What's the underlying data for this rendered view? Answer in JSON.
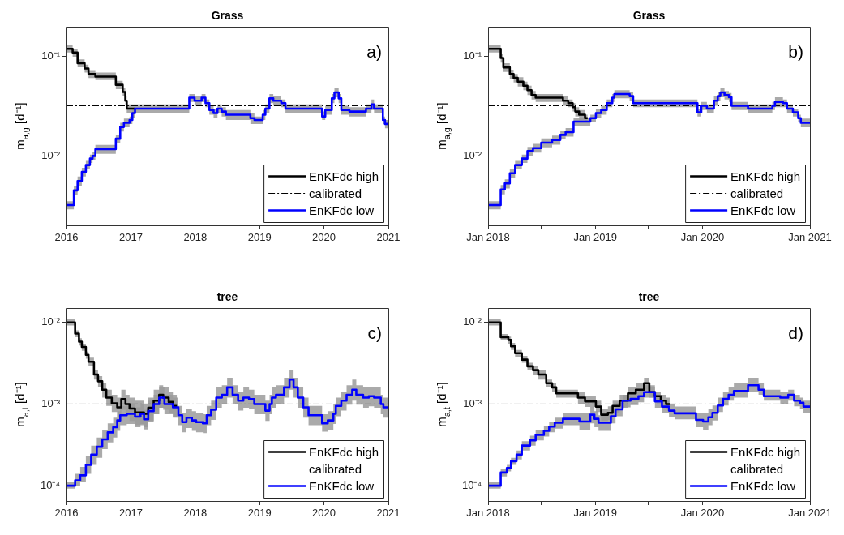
{
  "chart_data": [
    {
      "type": "step",
      "title": "Grass",
      "ylabel": "m$_{a,g}$ [d⁻¹]",
      "annotations": [
        "a)"
      ],
      "log": true,
      "legend": "bottom right",
      "xlim": [
        "2016",
        "2021"
      ],
      "xticks": [
        "2016",
        "2017",
        "2018",
        "2019",
        "2020",
        "2021"
      ],
      "ylim": [
        0.002,
        0.2
      ],
      "yticks": [
        {
          "value": 0.01,
          "label": "10⁻²"
        },
        {
          "value": 0.1,
          "label": "10⁻¹"
        }
      ],
      "series": [
        {
          "name": "EnKFdc high",
          "color": "#000000",
          "x": [
            "2016-01-01",
            "2016-02-05",
            "2016-03-04",
            "2016-04-13",
            "2016-05-05",
            "2016-06-13",
            "2016-10-07",
            "2016-11-15",
            "2016-11-30",
            "2016-12-08",
            "2017-01-24"
          ],
          "values": [
            0.12,
            0.11,
            0.086,
            0.076,
            0.067,
            0.063,
            0.052,
            0.044,
            0.036,
            0.03,
            0.03
          ],
          "lower": [
            0.11,
            0.1,
            0.078,
            0.069,
            0.061,
            0.058,
            0.047,
            0.04,
            0.033,
            0.027,
            0.027
          ],
          "upper": [
            0.13,
            0.12,
            0.094,
            0.083,
            0.073,
            0.069,
            0.057,
            0.048,
            0.04,
            0.033,
            0.033
          ]
        },
        {
          "name": "calibrated",
          "type": "line",
          "line_style": "dashed",
          "color": "#000000",
          "x": [
            "2016",
            "2021"
          ],
          "values": [
            0.032,
            0.032
          ]
        },
        {
          "name": "EnKFdc low",
          "color": "#0000ff",
          "x": [
            "2016-01-01",
            "2016-02-12",
            "2016-03-04",
            "2016-03-28",
            "2016-04-20",
            "2016-05-13",
            "2016-05-28",
            "2016-06-13",
            "2016-10-07",
            "2016-11-01",
            "2016-11-22",
            "2016-12-24",
            "2017-01-09",
            "2017-01-24",
            "2017-11-28",
            "2017-12-28",
            "2018-02-06",
            "2018-02-28",
            "2018-03-22",
            "2018-04-15",
            "2018-05-07",
            "2018-05-31",
            "2018-06-24",
            "2018-11-10",
            "2018-12-03",
            "2019-01-19",
            "2019-02-03",
            "2019-02-26",
            "2019-03-20",
            "2019-05-04",
            "2019-05-28",
            "2019-12-22",
            "2020-01-09",
            "2020-02-15",
            "2020-03-01",
            "2020-03-25",
            "2020-04-09",
            "2020-05-25",
            "2020-08-27",
            "2020-09-27",
            "2020-10-12",
            "2020-12-01",
            "2020-12-13",
            "2021-01-01"
          ],
          "values": [
            0.0032,
            0.0045,
            0.0056,
            0.0069,
            0.0081,
            0.0094,
            0.01,
            0.0117,
            0.0149,
            0.0196,
            0.0216,
            0.023,
            0.027,
            0.03,
            0.0386,
            0.036,
            0.0386,
            0.034,
            0.029,
            0.027,
            0.03,
            0.028,
            0.026,
            0.024,
            0.023,
            0.026,
            0.03,
            0.038,
            0.036,
            0.034,
            0.03,
            0.025,
            0.029,
            0.038,
            0.0436,
            0.038,
            0.029,
            0.028,
            0.03,
            0.033,
            0.03,
            0.023,
            0.021,
            0.021
          ],
          "lower": [
            0.0029,
            0.004,
            0.005,
            0.0062,
            0.0073,
            0.0085,
            0.009,
            0.0105,
            0.0134,
            0.0176,
            0.0194,
            0.021,
            0.024,
            0.027,
            0.035,
            0.032,
            0.035,
            0.031,
            0.026,
            0.024,
            0.027,
            0.025,
            0.023,
            0.021,
            0.021,
            0.023,
            0.027,
            0.034,
            0.032,
            0.031,
            0.027,
            0.023,
            0.026,
            0.034,
            0.039,
            0.034,
            0.026,
            0.025,
            0.027,
            0.029,
            0.027,
            0.021,
            0.019,
            0.019
          ],
          "upper": [
            0.0035,
            0.005,
            0.0062,
            0.0076,
            0.0089,
            0.0103,
            0.011,
            0.0129,
            0.0164,
            0.0216,
            0.0238,
            0.025,
            0.03,
            0.033,
            0.042,
            0.04,
            0.042,
            0.037,
            0.032,
            0.03,
            0.033,
            0.031,
            0.029,
            0.027,
            0.025,
            0.029,
            0.033,
            0.042,
            0.04,
            0.037,
            0.033,
            0.028,
            0.032,
            0.042,
            0.048,
            0.042,
            0.032,
            0.031,
            0.033,
            0.037,
            0.033,
            0.025,
            0.023,
            0.023
          ]
        }
      ]
    },
    {
      "type": "step",
      "title": "Grass",
      "ylabel": "m$_{a,g}$ [d⁻¹]",
      "annotations": [
        "b)"
      ],
      "log": true,
      "legend": "bottom right",
      "xlim": [
        "2018-01",
        "2021-01"
      ],
      "xticks": [
        {
          "value": "2018-01",
          "label": "Jan 2018"
        },
        {
          "value": "2018-07",
          "label": null
        },
        {
          "value": "2019-01",
          "label": "Jan 2019"
        },
        {
          "value": "2019-07",
          "label": null
        },
        {
          "value": "2020-01",
          "label": "Jan 2020"
        },
        {
          "value": "2020-07",
          "label": null
        },
        {
          "value": "2021-01",
          "label": "Jan 2021"
        }
      ],
      "ylim": [
        0.002,
        0.2
      ],
      "yticks": [
        {
          "value": 0.01,
          "label": "10⁻²"
        },
        {
          "value": 0.1,
          "label": "10⁻¹"
        }
      ],
      "series": [
        {
          "name": "EnKFdc high",
          "color": "#000000",
          "x": [
            "2018-01-01",
            "2018-02-13",
            "2018-02-22",
            "2018-03-16",
            "2018-03-29",
            "2018-04-12",
            "2018-05-01",
            "2018-05-15",
            "2018-05-29",
            "2018-06-12",
            "2018-09-13",
            "2018-10-01",
            "2018-10-16",
            "2018-10-25",
            "2018-11-07",
            "2018-11-27",
            "2018-12-06"
          ],
          "values": [
            0.12,
            0.097,
            0.078,
            0.067,
            0.061,
            0.056,
            0.051,
            0.046,
            0.041,
            0.0386,
            0.036,
            0.034,
            0.031,
            0.028,
            0.026,
            0.024,
            0.024
          ],
          "lower": [
            0.11,
            0.087,
            0.07,
            0.06,
            0.055,
            0.05,
            0.046,
            0.041,
            0.037,
            0.035,
            0.032,
            0.031,
            0.028,
            0.025,
            0.023,
            0.022,
            0.022
          ],
          "upper": [
            0.13,
            0.107,
            0.086,
            0.074,
            0.067,
            0.062,
            0.056,
            0.051,
            0.045,
            0.042,
            0.04,
            0.037,
            0.034,
            0.031,
            0.029,
            0.026,
            0.026
          ]
        },
        {
          "name": "calibrated",
          "type": "line",
          "line_style": "dashed",
          "color": "#000000",
          "x": [
            "2018-01",
            "2021-01"
          ],
          "values": [
            0.032,
            0.032
          ]
        },
        {
          "name": "EnKFdc low",
          "color": "#0000ff",
          "x": [
            "2018-01-01",
            "2018-02-13",
            "2018-02-27",
            "2018-03-16",
            "2018-04-03",
            "2018-04-26",
            "2018-05-15",
            "2018-06-03",
            "2018-07-01",
            "2018-08-07",
            "2018-09-04",
            "2018-09-22",
            "2018-10-19",
            "2018-12-15",
            "2019-01-03",
            "2019-01-21",
            "2019-02-09",
            "2019-02-28",
            "2019-03-07",
            "2019-04-28",
            "2019-05-10",
            "2019-12-15",
            "2019-12-28",
            "2020-01-16",
            "2020-02-09",
            "2020-02-22",
            "2020-03-02",
            "2020-03-16",
            "2020-03-31",
            "2020-04-09",
            "2020-06-04",
            "2020-08-26",
            "2020-09-04",
            "2020-10-01",
            "2020-10-15",
            "2020-11-04",
            "2020-11-22",
            "2020-12-01",
            "2021-01-01"
          ],
          "values": [
            0.0032,
            0.0046,
            0.0053,
            0.0067,
            0.0081,
            0.0094,
            0.0112,
            0.012,
            0.0136,
            0.0145,
            0.0163,
            0.0174,
            0.0222,
            0.024,
            0.027,
            0.029,
            0.034,
            0.0386,
            0.042,
            0.04,
            0.034,
            0.0275,
            0.032,
            0.03,
            0.036,
            0.04,
            0.0436,
            0.041,
            0.039,
            0.032,
            0.03,
            0.032,
            0.035,
            0.034,
            0.03,
            0.0275,
            0.024,
            0.0216,
            0.0216
          ],
          "lower": [
            0.0029,
            0.0041,
            0.0047,
            0.006,
            0.0073,
            0.0085,
            0.01,
            0.0108,
            0.0122,
            0.013,
            0.0147,
            0.0157,
            0.02,
            0.022,
            0.024,
            0.026,
            0.031,
            0.035,
            0.038,
            0.036,
            0.031,
            0.025,
            0.029,
            0.027,
            0.032,
            0.036,
            0.039,
            0.037,
            0.035,
            0.029,
            0.027,
            0.029,
            0.031,
            0.031,
            0.027,
            0.025,
            0.022,
            0.0194,
            0.0194
          ],
          "upper": [
            0.0035,
            0.0051,
            0.0058,
            0.0074,
            0.0089,
            0.0103,
            0.0123,
            0.0132,
            0.015,
            0.016,
            0.018,
            0.0191,
            0.0244,
            0.026,
            0.03,
            0.032,
            0.037,
            0.042,
            0.046,
            0.044,
            0.037,
            0.03,
            0.035,
            0.033,
            0.04,
            0.044,
            0.048,
            0.045,
            0.043,
            0.035,
            0.033,
            0.035,
            0.039,
            0.037,
            0.033,
            0.03,
            0.026,
            0.0238,
            0.0238
          ]
        }
      ]
    },
    {
      "type": "step",
      "title": "tree",
      "ylabel": "m$_{a,t}$ [d⁻¹]",
      "annotations": [
        "c)"
      ],
      "log": true,
      "legend": "bottom right",
      "xlim": [
        "2016",
        "2021"
      ],
      "xticks": [
        "2016",
        "2017",
        "2018",
        "2019",
        "2020",
        "2021"
      ],
      "ylim": [
        6.5e-05,
        0.015
      ],
      "yticks": [
        {
          "value": 0.0001,
          "label": "10⁻⁴"
        },
        {
          "value": 0.001,
          "label": "10⁻³"
        },
        {
          "value": 0.01,
          "label": "10⁻²"
        }
      ],
      "series": [
        {
          "name": "EnKFdc high",
          "color": "#000000",
          "x": [
            "2016-01-01",
            "2016-02-19",
            "2016-03-12",
            "2016-03-28",
            "2016-04-20",
            "2016-05-05",
            "2016-06-05",
            "2016-06-28",
            "2016-07-22",
            "2016-08-14",
            "2016-09-14",
            "2016-10-15",
            "2016-11-07",
            "2016-12-01",
            "2016-12-24",
            "2017-01-24",
            "2017-03-16",
            "2017-04-09",
            "2017-05-10",
            "2017-06-10",
            "2017-07-03",
            "2017-08-03",
            "2017-08-27",
            "2017-09-19"
          ],
          "values": [
            0.01,
            0.0073,
            0.0058,
            0.005,
            0.004,
            0.0033,
            0.0023,
            0.0019,
            0.0015,
            0.0012,
            0.00102,
            0.00091,
            0.00115,
            0.001,
            0.00088,
            0.00079,
            0.00076,
            0.0009,
            0.0011,
            0.0013,
            0.0012,
            0.00106,
            0.00095,
            0.00095
          ],
          "lower": [
            0.0092,
            0.0066,
            0.0052,
            0.0045,
            0.0036,
            0.0029,
            0.002,
            0.0016,
            0.0012,
            0.00095,
            0.0008,
            0.0007,
            0.00085,
            0.00072,
            0.00062,
            0.00055,
            0.00052,
            0.0006,
            0.00075,
            0.0009,
            0.00085,
            0.00078,
            0.0007,
            0.0007
          ],
          "upper": [
            0.011,
            0.008,
            0.0064,
            0.0055,
            0.0044,
            0.0037,
            0.0026,
            0.0022,
            0.0018,
            0.0015,
            0.0013,
            0.0012,
            0.0015,
            0.0013,
            0.0012,
            0.0011,
            0.001,
            0.0012,
            0.0015,
            0.0017,
            0.0016,
            0.0014,
            0.0013,
            0.0012
          ]
        },
        {
          "name": "calibrated",
          "type": "line",
          "line_style": "dashed",
          "color": "#000000",
          "x": [
            "2016",
            "2021"
          ],
          "values": [
            0.001,
            0.001
          ]
        },
        {
          "name": "EnKFdc low",
          "color": "#0000ff",
          "x": [
            "2016-01-01",
            "2016-02-19",
            "2016-03-19",
            "2016-04-20",
            "2016-05-20",
            "2016-06-21",
            "2016-07-22",
            "2016-08-22",
            "2016-09-22",
            "2016-10-15",
            "2016-11-01",
            "2016-12-08",
            "2017-01-24",
            "2017-02-24",
            "2017-03-16",
            "2017-04-09",
            "2017-05-10",
            "2017-06-10",
            "2017-07-10",
            "2017-08-27",
            "2017-09-27",
            "2017-10-19",
            "2017-11-12",
            "2017-12-13",
            "2018-01-06",
            "2018-02-13",
            "2018-03-07",
            "2018-04-01",
            "2018-04-30",
            "2018-06-01",
            "2018-07-01",
            "2018-08-01",
            "2018-09-01",
            "2018-10-01",
            "2018-11-02",
            "2018-12-02",
            "2019-02-03",
            "2019-02-27",
            "2019-03-12",
            "2019-04-04",
            "2019-05-20",
            "2019-06-20",
            "2019-07-13",
            "2019-08-06",
            "2019-09-06",
            "2019-10-06",
            "2019-12-22",
            "2020-01-23",
            "2020-02-24",
            "2020-03-09",
            "2020-04-09",
            "2020-05-09",
            "2020-06-10",
            "2020-07-03",
            "2020-08-11",
            "2020-09-12",
            "2020-10-12",
            "2020-11-19",
            "2020-12-04",
            "2021-01-01"
          ],
          "values": [
            0.0001,
            0.000116,
            0.000134,
            0.00018,
            0.00024,
            0.0003,
            0.00037,
            0.00045,
            0.00052,
            0.00063,
            0.00073,
            0.00076,
            0.0007,
            0.00076,
            0.00065,
            0.00082,
            0.001,
            0.0012,
            0.001,
            0.00091,
            0.00073,
            0.0006,
            0.00068,
            0.00063,
            0.0006,
            0.00058,
            0.00073,
            0.00085,
            0.0012,
            0.0013,
            0.0016,
            0.0013,
            0.0011,
            0.0012,
            0.00115,
            0.001,
            0.00083,
            0.001,
            0.0012,
            0.0013,
            0.0016,
            0.002,
            0.0016,
            0.0012,
            0.00091,
            0.00073,
            0.00058,
            0.00063,
            0.00076,
            0.00095,
            0.0011,
            0.0013,
            0.0015,
            0.0013,
            0.0012,
            0.00125,
            0.0012,
            0.001,
            0.00091,
            0.00091
          ],
          "lower": [
            9.2e-05,
            0.0001,
            0.00011,
            0.00014,
            0.00018,
            0.00022,
            0.00028,
            0.00034,
            0.00039,
            0.00047,
            0.00055,
            0.00057,
            0.00052,
            0.00057,
            0.00049,
            0.00062,
            0.00075,
            0.0009,
            0.00075,
            0.00068,
            0.00055,
            0.00045,
            0.00051,
            0.00047,
            0.00045,
            0.00044,
            0.00055,
            0.00064,
            0.0009,
            0.001,
            0.0012,
            0.001,
            0.00083,
            0.0009,
            0.00086,
            0.00075,
            0.00062,
            0.00075,
            0.0009,
            0.001,
            0.0012,
            0.0015,
            0.0012,
            0.0009,
            0.00068,
            0.00055,
            0.00046,
            0.00048,
            0.00057,
            0.00071,
            0.00083,
            0.00098,
            0.0011,
            0.00098,
            0.0009,
            0.00094,
            0.0009,
            0.00075,
            0.00068,
            0.00068
          ],
          "upper": [
            0.00011,
            0.00014,
            0.00017,
            0.00023,
            0.00031,
            0.00039,
            0.00048,
            0.00058,
            0.00068,
            0.00082,
            0.00095,
            0.00099,
            0.00091,
            0.00099,
            0.00085,
            0.0011,
            0.0013,
            0.0016,
            0.0013,
            0.0012,
            0.00095,
            0.00078,
            0.00088,
            0.00082,
            0.00078,
            0.00075,
            0.00095,
            0.0011,
            0.0016,
            0.0017,
            0.0021,
            0.0017,
            0.0014,
            0.0016,
            0.0015,
            0.0013,
            0.0011,
            0.0013,
            0.0016,
            0.0017,
            0.0021,
            0.0026,
            0.0021,
            0.0016,
            0.0012,
            0.00095,
            0.00075,
            0.00082,
            0.00099,
            0.0012,
            0.0014,
            0.0017,
            0.002,
            0.0017,
            0.0016,
            0.0016,
            0.0016,
            0.0013,
            0.0012,
            0.0012
          ]
        }
      ]
    },
    {
      "type": "step",
      "title": "tree",
      "ylabel": "m$_{a,t}$ [d⁻¹]",
      "annotations": [
        "d)"
      ],
      "log": true,
      "legend": "bottom right",
      "xlim": [
        "2018-01",
        "2021-01"
      ],
      "xticks": [
        {
          "value": "2018-01",
          "label": "Jan 2018"
        },
        {
          "value": "2018-07",
          "label": null
        },
        {
          "value": "2019-01",
          "label": "Jan 2019"
        },
        {
          "value": "2019-07",
          "label": null
        },
        {
          "value": "2020-01",
          "label": "Jan 2020"
        },
        {
          "value": "2020-07",
          "label": null
        },
        {
          "value": "2021-01",
          "label": "Jan 2021"
        }
      ],
      "ylim": [
        6.5e-05,
        0.015
      ],
      "yticks": [
        {
          "value": 0.0001,
          "label": "10⁻⁴"
        },
        {
          "value": 0.001,
          "label": "10⁻³"
        },
        {
          "value": 0.01,
          "label": "10⁻²"
        }
      ],
      "series": [
        {
          "name": "EnKFdc high",
          "color": "#000000",
          "x": [
            "2018-01-01",
            "2018-02-13",
            "2018-03-11",
            "2018-03-20",
            "2018-04-03",
            "2018-04-26",
            "2018-05-15",
            "2018-06-03",
            "2018-06-21",
            "2018-07-18",
            "2018-08-07",
            "2018-08-21",
            "2018-11-03",
            "2018-11-27",
            "2019-01-03",
            "2019-01-21",
            "2019-02-13",
            "2019-03-01",
            "2019-03-25",
            "2019-04-22",
            "2019-05-19",
            "2019-06-16",
            "2019-07-04",
            "2019-07-23",
            "2019-08-12",
            "2019-08-30",
            "2019-09-13"
          ],
          "values": [
            0.01,
            0.0066,
            0.0061,
            0.0051,
            0.0042,
            0.0035,
            0.0029,
            0.0026,
            0.0023,
            0.0018,
            0.0016,
            0.00135,
            0.0012,
            0.00108,
            0.00093,
            0.00074,
            0.00078,
            0.00095,
            0.0011,
            0.00135,
            0.0015,
            0.0018,
            0.0014,
            0.00125,
            0.0011,
            0.001,
            0.001
          ],
          "lower": [
            0.0092,
            0.006,
            0.0055,
            0.0046,
            0.0038,
            0.0032,
            0.0026,
            0.0023,
            0.002,
            0.0016,
            0.0014,
            0.0012,
            0.001,
            0.00092,
            0.0008,
            0.00062,
            0.00064,
            0.00078,
            0.0009,
            0.0011,
            0.0012,
            0.0015,
            0.0012,
            0.0011,
            0.00095,
            0.00088,
            0.00088
          ],
          "upper": [
            0.011,
            0.0072,
            0.0067,
            0.0056,
            0.0046,
            0.0039,
            0.0032,
            0.0029,
            0.0026,
            0.002,
            0.0018,
            0.0015,
            0.0014,
            0.00125,
            0.0011,
            0.00088,
            0.00094,
            0.0011,
            0.0013,
            0.0016,
            0.0018,
            0.0021,
            0.0016,
            0.0014,
            0.0013,
            0.0012,
            0.0012
          ]
        },
        {
          "name": "calibrated",
          "type": "line",
          "line_style": "dashed",
          "color": "#000000",
          "x": [
            "2018-01",
            "2021-01"
          ],
          "values": [
            0.001,
            0.001
          ]
        },
        {
          "name": "EnKFdc low",
          "color": "#0000ff",
          "x": [
            "2018-01-01",
            "2018-02-13",
            "2018-03-06",
            "2018-03-20",
            "2018-04-08",
            "2018-04-26",
            "2018-05-24",
            "2018-06-12",
            "2018-07-10",
            "2018-07-28",
            "2018-08-16",
            "2018-09-13",
            "2018-11-08",
            "2018-12-15",
            "2018-12-29",
            "2019-01-12",
            "2019-02-23",
            "2019-03-11",
            "2019-04-04",
            "2019-05-01",
            "2019-05-28",
            "2019-06-16",
            "2019-07-23",
            "2019-08-16",
            "2019-09-09",
            "2019-09-28",
            "2019-12-10",
            "2020-01-03",
            "2020-01-21",
            "2020-02-04",
            "2020-02-22",
            "2020-03-11",
            "2020-03-30",
            "2020-04-17",
            "2020-06-04",
            "2020-07-10",
            "2020-07-28",
            "2020-09-22",
            "2020-10-19",
            "2020-11-08",
            "2020-11-28",
            "2020-12-10",
            "2021-01-01"
          ],
          "values": [
            0.0001,
            0.000145,
            0.000165,
            0.0002,
            0.00024,
            0.00031,
            0.00036,
            0.00042,
            0.00047,
            0.00053,
            0.00059,
            0.00066,
            0.00061,
            0.00074,
            0.00066,
            0.00059,
            0.00071,
            0.00086,
            0.0011,
            0.00116,
            0.00125,
            0.0014,
            0.00108,
            0.00093,
            0.00083,
            0.00077,
            0.00064,
            0.00061,
            0.00069,
            0.00078,
            0.00096,
            0.00116,
            0.0013,
            0.00145,
            0.0017,
            0.0015,
            0.00125,
            0.0012,
            0.0013,
            0.0011,
            0.00104,
            0.00093,
            0.00093
          ],
          "lower": [
            9.2e-05,
            0.00013,
            0.00015,
            0.00018,
            0.00021,
            0.00027,
            0.00031,
            0.00036,
            0.0004,
            0.00045,
            0.0005,
            0.00055,
            0.00048,
            0.00058,
            0.00052,
            0.00047,
            0.00058,
            0.00071,
            0.00091,
            0.00097,
            0.00105,
            0.0012,
            0.0009,
            0.00078,
            0.0007,
            0.00065,
            0.00052,
            0.00048,
            0.00055,
            0.00063,
            0.0008,
            0.00096,
            0.0011,
            0.0012,
            0.0014,
            0.0013,
            0.0011,
            0.001,
            0.0011,
            0.00094,
            0.00088,
            0.00078,
            0.00078
          ],
          "upper": [
            0.00011,
            0.00016,
            0.00018,
            0.00022,
            0.00027,
            0.00035,
            0.00041,
            0.00048,
            0.00054,
            0.00061,
            0.00068,
            0.00077,
            0.00077,
            0.00092,
            0.00082,
            0.00073,
            0.00088,
            0.00104,
            0.0013,
            0.0014,
            0.0015,
            0.0017,
            0.0013,
            0.0011,
            0.001,
            0.00093,
            0.00078,
            0.00078,
            0.00086,
            0.00096,
            0.0012,
            0.0014,
            0.0016,
            0.0018,
            0.0021,
            0.0018,
            0.0015,
            0.0014,
            0.0015,
            0.0013,
            0.0012,
            0.0011,
            0.0011
          ]
        }
      ]
    }
  ]
}
